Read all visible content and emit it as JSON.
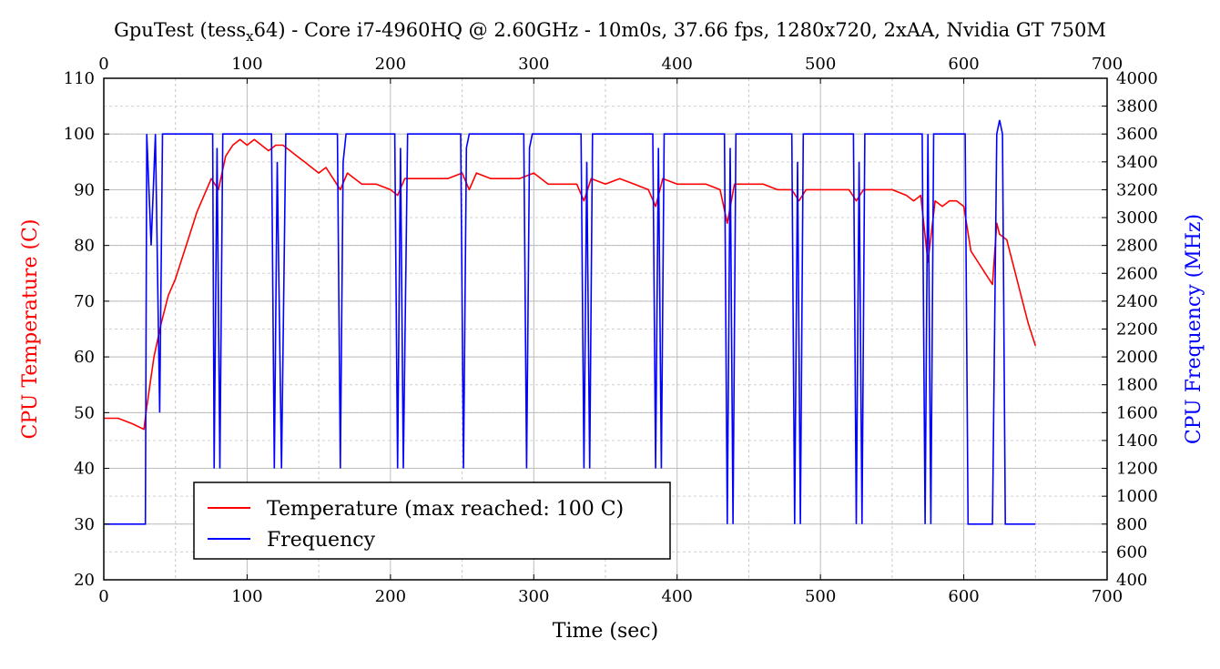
{
  "chart_data": {
    "type": "line",
    "title": "GpuTest (tess_x64) - Core i7-4960HQ @ 2.60GHz - 10m0s, 37.66 fps, 1280x720, 2xAA, Nvidia GT 750M",
    "title_parts": {
      "before": "GpuTest (tess",
      "subscript": "x",
      "after": "64) - Core i7-4960HQ @ 2.60GHz - 10m0s, 37.66 fps, 1280x720, 2xAA, Nvidia GT 750M"
    },
    "xlabel": "Time (sec)",
    "ylabel_left": "CPU Temperature (C)",
    "ylabel_right": "CPU Frequency (MHz)",
    "xlim": [
      0,
      700
    ],
    "ylim_left": [
      20,
      110
    ],
    "ylim_right": [
      400,
      4000
    ],
    "x_ticks": [
      "0",
      "100",
      "200",
      "300",
      "400",
      "500",
      "600",
      "700"
    ],
    "y_ticks_left": [
      "20",
      "30",
      "40",
      "50",
      "60",
      "70",
      "80",
      "90",
      "100",
      "110"
    ],
    "y_ticks_right": [
      "400",
      "600",
      "800",
      "1000",
      "1200",
      "1400",
      "1600",
      "1800",
      "2000",
      "2200",
      "2400",
      "2600",
      "2800",
      "3000",
      "3200",
      "3400",
      "3600",
      "3800",
      "4000"
    ],
    "grid": true,
    "legend_position": "bottom-left",
    "colors": {
      "temperature": "#ff0000",
      "frequency": "#0000ff",
      "left_axis_label": "#ff0000",
      "right_axis_label": "#0000ff"
    },
    "series": [
      {
        "name": "Temperature (max reached: 100 C)",
        "axis": "left",
        "x": [
          0,
          10,
          20,
          28,
          30,
          35,
          40,
          45,
          50,
          55,
          60,
          65,
          70,
          75,
          80,
          85,
          90,
          95,
          100,
          105,
          110,
          115,
          120,
          125,
          130,
          135,
          140,
          145,
          150,
          155,
          160,
          165,
          170,
          175,
          180,
          190,
          200,
          205,
          210,
          220,
          230,
          240,
          250,
          255,
          260,
          270,
          280,
          290,
          300,
          310,
          320,
          330,
          335,
          340,
          350,
          360,
          370,
          380,
          385,
          390,
          400,
          410,
          420,
          430,
          435,
          440,
          450,
          460,
          470,
          480,
          485,
          490,
          500,
          510,
          520,
          525,
          530,
          540,
          550,
          560,
          565,
          570,
          575,
          580,
          585,
          590,
          595,
          600,
          605,
          610,
          615,
          620,
          623,
          625,
          630,
          635,
          640,
          645,
          650
        ],
        "values": [
          49,
          49,
          48,
          47,
          51,
          60,
          66,
          71,
          74,
          78,
          82,
          86,
          89,
          92,
          90,
          96,
          98,
          99,
          98,
          99,
          98,
          97,
          98,
          98,
          97,
          96,
          95,
          94,
          93,
          94,
          92,
          90,
          93,
          92,
          91,
          91,
          90,
          89,
          92,
          92,
          92,
          92,
          93,
          90,
          93,
          92,
          92,
          92,
          93,
          91,
          91,
          91,
          88,
          92,
          91,
          92,
          91,
          90,
          87,
          92,
          91,
          91,
          91,
          90,
          84,
          91,
          91,
          91,
          90,
          90,
          88,
          90,
          90,
          90,
          90,
          88,
          90,
          90,
          90,
          89,
          88,
          89,
          77,
          88,
          87,
          88,
          88,
          87,
          79,
          77,
          75,
          73,
          84,
          82,
          81,
          76,
          71,
          66,
          62
        ]
      },
      {
        "name": "Frequency",
        "axis": "right",
        "x": [
          0,
          29,
          30,
          33,
          36,
          39,
          41,
          43,
          76,
          77,
          79,
          81,
          83,
          117,
          119,
          121,
          124,
          127,
          163,
          165,
          167,
          169,
          203,
          205,
          207,
          209,
          212,
          214,
          249,
          251,
          253,
          255,
          293,
          295,
          297,
          299,
          333,
          335,
          337,
          339,
          341,
          383,
          385,
          387,
          389,
          391,
          433,
          435,
          437,
          439,
          441,
          480,
          482,
          484,
          486,
          488,
          523,
          525,
          527,
          529,
          531,
          571,
          573,
          575,
          577,
          579,
          601,
          603,
          605,
          620,
          623,
          625,
          627,
          629,
          631,
          650
        ],
        "values": [
          800,
          800,
          3600,
          2800,
          3600,
          1600,
          3600,
          3600,
          3600,
          1200,
          3500,
          1200,
          3600,
          3600,
          1200,
          3400,
          1200,
          3600,
          3600,
          1200,
          3400,
          3600,
          3600,
          1200,
          3500,
          1200,
          3600,
          3600,
          3600,
          1200,
          3500,
          3600,
          3600,
          1200,
          3500,
          3600,
          3600,
          1200,
          3400,
          1200,
          3600,
          3600,
          1200,
          3500,
          1200,
          3600,
          3600,
          800,
          3500,
          800,
          3600,
          3600,
          800,
          3400,
          800,
          3600,
          3600,
          800,
          3400,
          800,
          3600,
          3600,
          800,
          3600,
          800,
          3600,
          3600,
          800,
          800,
          800,
          3600,
          3700,
          3600,
          800,
          800,
          800
        ]
      }
    ]
  }
}
